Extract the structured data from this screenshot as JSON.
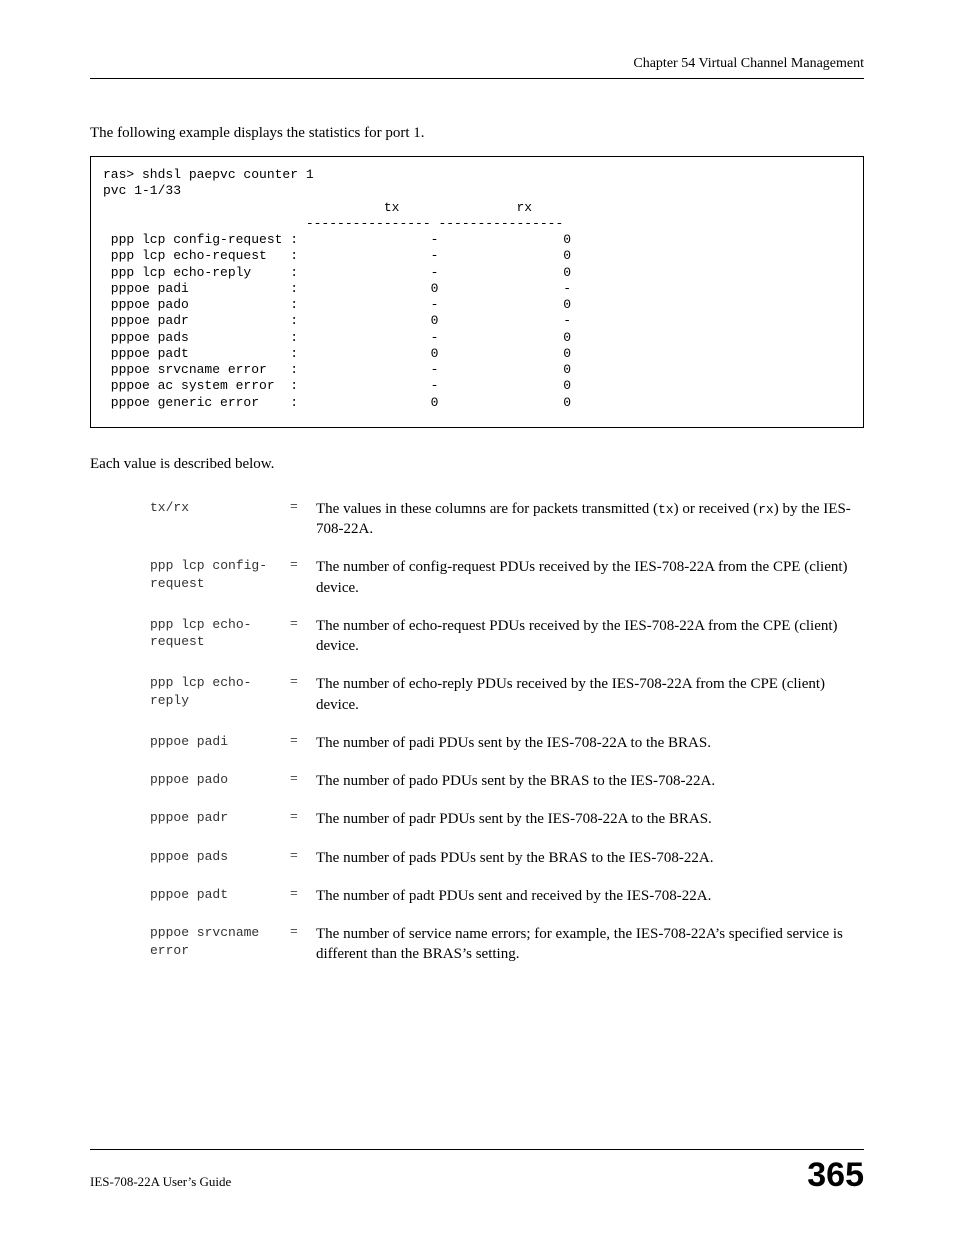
{
  "header": {
    "chapter": "Chapter 54 Virtual Channel Management"
  },
  "intro": "The following example displays the statistics for port 1.",
  "code": {
    "cmd": "ras> shdsl paepvc counter 1",
    "pvc": "pvc 1-1/33",
    "col_tx": "tx",
    "col_rx": "rx",
    "dash": "---------------- ----------------",
    "rows": [
      {
        "name": "ppp lcp config-request",
        "tx": "-",
        "rx": "0"
      },
      {
        "name": "ppp lcp echo-request",
        "tx": "-",
        "rx": "0"
      },
      {
        "name": "ppp lcp echo-reply",
        "tx": "-",
        "rx": "0"
      },
      {
        "name": "pppoe padi",
        "tx": "0",
        "rx": "-"
      },
      {
        "name": "pppoe pado",
        "tx": "-",
        "rx": "0"
      },
      {
        "name": "pppoe padr",
        "tx": "0",
        "rx": "-"
      },
      {
        "name": "pppoe pads",
        "tx": "-",
        "rx": "0"
      },
      {
        "name": "pppoe padt",
        "tx": "0",
        "rx": "0"
      },
      {
        "name": "pppoe srvcname error",
        "tx": "-",
        "rx": "0"
      },
      {
        "name": "pppoe ac system error",
        "tx": "-",
        "rx": "0"
      },
      {
        "name": "pppoe generic error",
        "tx": "0",
        "rx": "0"
      }
    ]
  },
  "desc_intro": "Each value is described below.",
  "defs": [
    {
      "term": "tx/rx",
      "pre": "The values in these columns are for packets transmitted (",
      "mono1": "tx",
      "mid": ") or received (",
      "mono2": "rx",
      "post": ") by the IES-708-22A."
    },
    {
      "term": "ppp lcp config-request",
      "desc": "The number of config-request PDUs received by the IES-708-22A from the CPE (client) device."
    },
    {
      "term": "ppp lcp echo-request",
      "desc": "The number of echo-request PDUs received by the IES-708-22A from the CPE (client) device."
    },
    {
      "term": "ppp lcp echo-reply",
      "desc": "The number of echo-reply PDUs received by the IES-708-22A from the CPE (client) device."
    },
    {
      "term": "pppoe padi",
      "desc": "The number of padi PDUs sent by the IES-708-22A to the BRAS."
    },
    {
      "term": "pppoe pado",
      "desc": "The number of pado PDUs sent by the BRAS to the IES-708-22A."
    },
    {
      "term": "pppoe padr",
      "desc": "The number of padr PDUs sent by the IES-708-22A to the BRAS."
    },
    {
      "term": "pppoe pads",
      "desc": "The number of pads PDUs sent by the BRAS to the IES-708-22A."
    },
    {
      "term": "pppoe padt",
      "desc": "The number of padt PDUs sent and received by the IES-708-22A."
    },
    {
      "term": "pppoe srvcname error",
      "desc": "The number of service name errors; for example, the IES-708-22A’s specified service is different than the BRAS’s setting."
    }
  ],
  "footer": {
    "left": "IES-708-22A User’s Guide",
    "page": "365"
  }
}
